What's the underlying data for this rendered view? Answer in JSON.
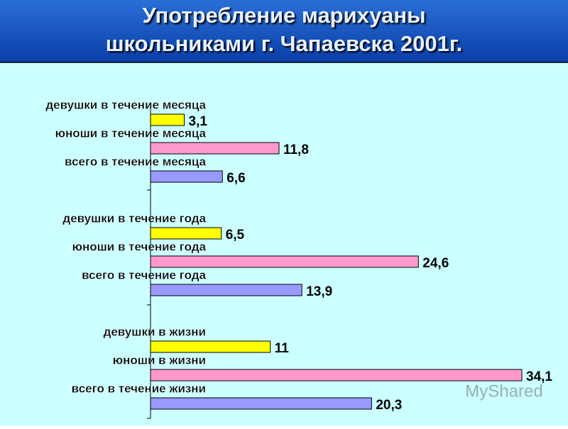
{
  "chart_data": {
    "type": "hbar",
    "title": "Употребление марихуаны школьниками г. Чапаевска 2001г.",
    "categories": [
      "девушки в течение месяца",
      "юноши в течение месяца",
      "всего в течение месяца",
      "девушки в течение года",
      "юноши в течение года",
      "всего в течение года",
      "девушки в жизни",
      "юноши в жизни",
      "всего в течение жизни"
    ],
    "values": [
      3.1,
      11.8,
      6.6,
      6.5,
      24.6,
      13.9,
      11,
      34.1,
      20.3
    ],
    "value_labels": [
      "3,1",
      "11,8",
      "6,6",
      "6,5",
      "24,6",
      "13,9",
      "11",
      "34,1",
      "20,3"
    ],
    "colors": [
      "#ffff00",
      "#ff99cc",
      "#9999ff",
      "#ffff00",
      "#ff99cc",
      "#9999ff",
      "#ffff00",
      "#ff99cc",
      "#9999ff"
    ]
  },
  "watermark": "MyShared"
}
